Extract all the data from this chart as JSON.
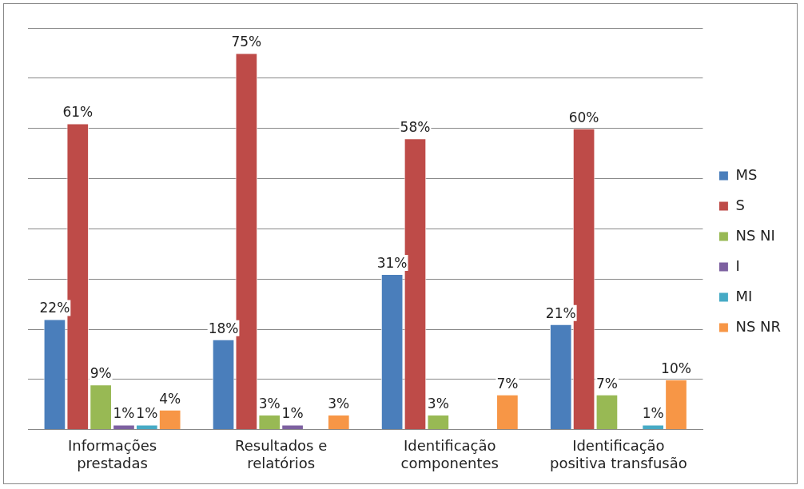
{
  "chart_data": {
    "type": "bar",
    "categories": [
      "Informações prestadas",
      "Resultados e relatórios",
      "Identificação componentes",
      "Identificação positiva transfusão"
    ],
    "series": [
      {
        "name": "MS",
        "color": "#4a7ebb",
        "values": [
          22,
          18,
          31,
          21
        ],
        "value_labels": [
          "22%",
          "18%",
          "31%",
          "21%"
        ]
      },
      {
        "name": "S",
        "color": "#be4b48",
        "values": [
          61,
          75,
          58,
          60
        ],
        "value_labels": [
          "61%",
          "75%",
          "58%",
          "60%"
        ]
      },
      {
        "name": "NS NI",
        "color": "#98b954",
        "values": [
          9,
          3,
          3,
          7
        ],
        "value_labels": [
          "9%",
          "3%",
          "3%",
          "7%"
        ]
      },
      {
        "name": "I",
        "color": "#7d60a0",
        "values": [
          1,
          1,
          null,
          null
        ],
        "value_labels": [
          "1%",
          "1%",
          null,
          null
        ]
      },
      {
        "name": "MI",
        "color": "#46aac5",
        "values": [
          1,
          null,
          null,
          1
        ],
        "value_labels": [
          "1%",
          null,
          null,
          "1%"
        ]
      },
      {
        "name": "NS NR",
        "color": "#f79646",
        "values": [
          4,
          3,
          7,
          10
        ],
        "value_labels": [
          "4%",
          "3%",
          "7%",
          "10%"
        ]
      }
    ],
    "ylim": [
      0,
      80
    ],
    "yticks": [
      0,
      10,
      20,
      30,
      40,
      50,
      60,
      70,
      80
    ],
    "tick_labels": "x",
    "grid": "y",
    "legend": "right"
  }
}
